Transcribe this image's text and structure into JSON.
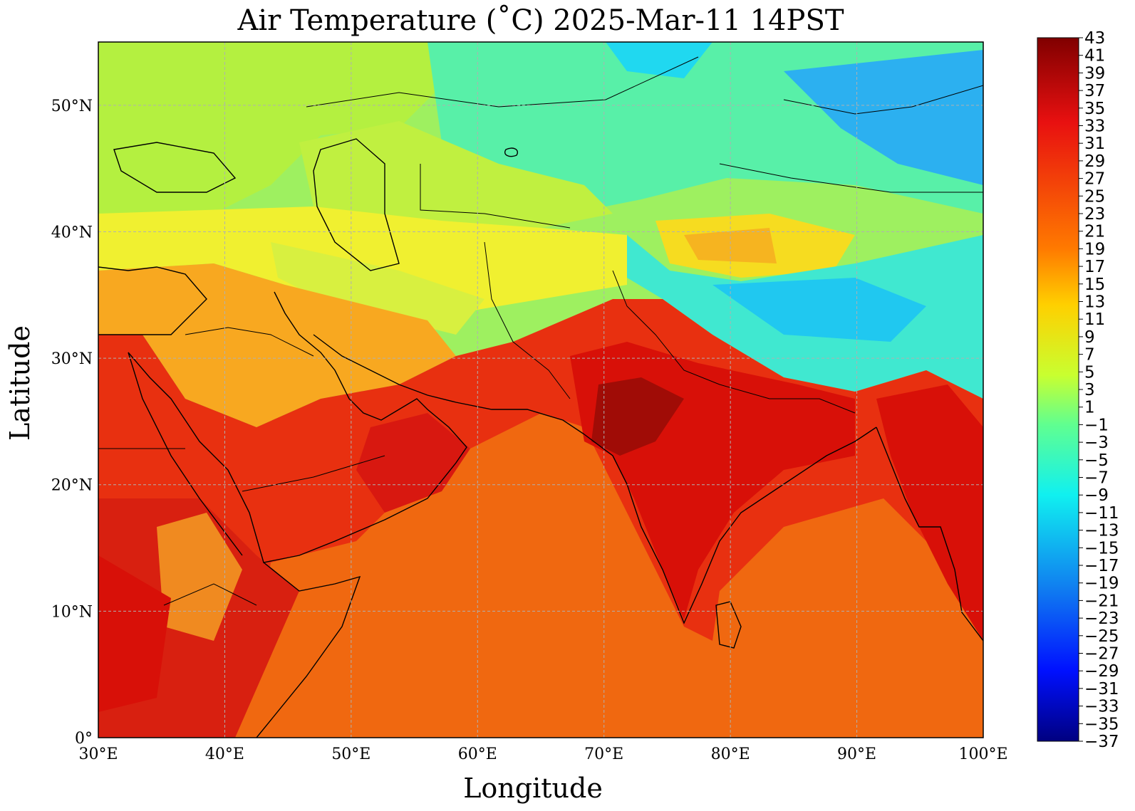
{
  "title": "Air Temperature (˚C)  2025-Mar-11 14PST",
  "xlabel": "Longitude",
  "ylabel": "Latitude",
  "lon_ticks": [
    "30°E",
    "40°E",
    "50°E",
    "60°E",
    "70°E",
    "80°E",
    "90°E",
    "100°E"
  ],
  "lat_ticks": [
    "0°",
    "10°N",
    "20°N",
    "30°N",
    "40°N",
    "50°N"
  ],
  "extent": {
    "lon_min": 30,
    "lon_max": 100,
    "lat_min": 0,
    "lat_max": 55
  },
  "colorbar": {
    "min": -37,
    "max": 43,
    "step": 1,
    "tick_labels": [
      "43",
      "41",
      "39",
      "37",
      "35",
      "33",
      "31",
      "29",
      "27",
      "25",
      "23",
      "21",
      "19",
      "17",
      "15",
      "13",
      "11",
      "9",
      "7",
      "5",
      "3",
      "1",
      "−1",
      "−3",
      "−5",
      "−7",
      "−9",
      "−11",
      "−13",
      "−15",
      "−17",
      "−19",
      "−21",
      "−23",
      "−25",
      "−27",
      "−29",
      "−31",
      "−33",
      "−35",
      "−37"
    ],
    "colormap": "jet"
  },
  "colors": {
    "ocean": "#f06010",
    "hot": "#d81008",
    "hottest": "#9c0a06",
    "warm": "#f8a020",
    "mild": "#f6e418",
    "cool": "#b8f040",
    "cold": "#40f0b0",
    "colder": "#20e0f0",
    "coldest": "#2098e8"
  }
}
